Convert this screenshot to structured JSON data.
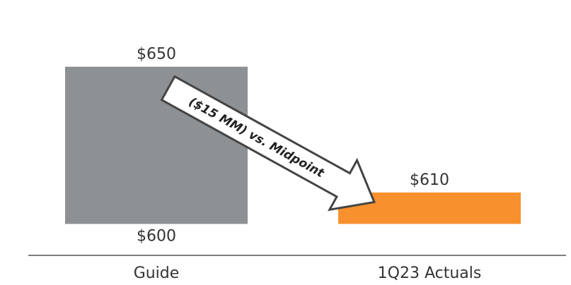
{
  "chart_data": {
    "type": "floating_bar",
    "categories": [
      "Guide",
      "1Q23 Actuals"
    ],
    "values_low": [
      600,
      600
    ],
    "values_high": [
      650,
      610
    ],
    "value_labels_low": [
      "$600",
      null
    ],
    "value_labels_high": [
      "$650",
      "$610"
    ],
    "colors": [
      "#8e9193",
      "#f7902d"
    ],
    "ylim": [
      590,
      660
    ],
    "annotation": "($15 MM) vs. Midpoint"
  }
}
